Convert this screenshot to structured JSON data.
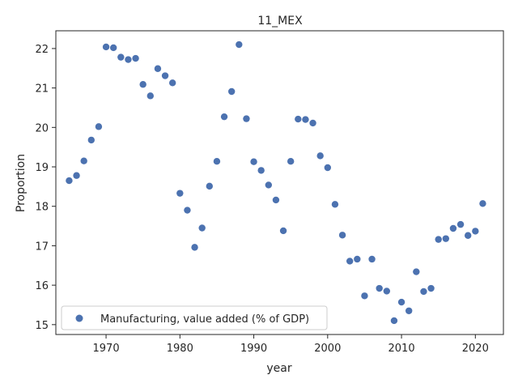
{
  "chart_data": {
    "type": "scatter",
    "title": "11_MEX",
    "xlabel": "year",
    "ylabel": "Proportion",
    "xlim": [
      1963.2,
      2023.8
    ],
    "ylim": [
      14.75,
      22.45
    ],
    "xticks": [
      1970,
      1980,
      1990,
      2000,
      2010,
      2020
    ],
    "yticks": [
      15,
      16,
      17,
      18,
      19,
      20,
      21,
      22
    ],
    "grid": false,
    "legend_position": "lower-left",
    "series": [
      {
        "name": "Manufacturing, value added (% of GDP)",
        "color": "#4c72b0",
        "points": [
          [
            1965,
            18.65
          ],
          [
            1966,
            18.78
          ],
          [
            1967,
            19.15
          ],
          [
            1968,
            19.68
          ],
          [
            1969,
            20.02
          ],
          [
            1970,
            22.04
          ],
          [
            1971,
            22.02
          ],
          [
            1972,
            21.78
          ],
          [
            1973,
            21.72
          ],
          [
            1974,
            21.75
          ],
          [
            1975,
            21.09
          ],
          [
            1976,
            20.8
          ],
          [
            1977,
            21.49
          ],
          [
            1978,
            21.31
          ],
          [
            1979,
            21.13
          ],
          [
            1980,
            18.33
          ],
          [
            1981,
            17.9
          ],
          [
            1982,
            16.96
          ],
          [
            1983,
            17.45
          ],
          [
            1984,
            18.51
          ],
          [
            1985,
            19.14
          ],
          [
            1986,
            20.27
          ],
          [
            1987,
            20.91
          ],
          [
            1988,
            22.1
          ],
          [
            1989,
            20.22
          ],
          [
            1990,
            19.13
          ],
          [
            1991,
            18.91
          ],
          [
            1992,
            18.54
          ],
          [
            1993,
            18.16
          ],
          [
            1994,
            17.38
          ],
          [
            1995,
            19.14
          ],
          [
            1996,
            20.21
          ],
          [
            1997,
            20.2
          ],
          [
            1998,
            20.11
          ],
          [
            1999,
            19.28
          ],
          [
            2000,
            18.98
          ],
          [
            2001,
            18.05
          ],
          [
            2002,
            17.27
          ],
          [
            2003,
            16.61
          ],
          [
            2004,
            16.66
          ],
          [
            2005,
            15.73
          ],
          [
            2006,
            16.66
          ],
          [
            2007,
            15.92
          ],
          [
            2008,
            15.85
          ],
          [
            2009,
            15.1
          ],
          [
            2010,
            15.57
          ],
          [
            2011,
            15.35
          ],
          [
            2012,
            16.34
          ],
          [
            2013,
            15.84
          ],
          [
            2014,
            15.92
          ],
          [
            2015,
            17.16
          ],
          [
            2016,
            17.18
          ],
          [
            2017,
            17.44
          ],
          [
            2018,
            17.54
          ],
          [
            2019,
            17.26
          ],
          [
            2020,
            17.37
          ],
          [
            2021,
            18.07
          ]
        ]
      }
    ]
  }
}
